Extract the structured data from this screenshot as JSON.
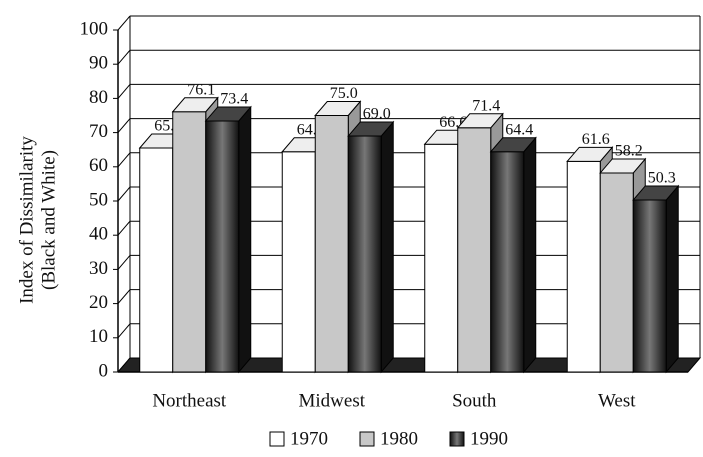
{
  "chart_data": {
    "type": "bar3d",
    "ylabel": [
      "Index of Dissimilarity",
      "(Black and White)"
    ],
    "categories": [
      "Northeast",
      "Midwest",
      "South",
      "West"
    ],
    "series": [
      {
        "name": "1970",
        "color": "#ffffff",
        "values": [
          65.5,
          64.4,
          66.6,
          61.6
        ],
        "value_labels": [
          "65.5",
          "64.4",
          "66.6",
          "61.6"
        ]
      },
      {
        "name": "1980",
        "color": "#c8c8c8",
        "values": [
          76.1,
          75.0,
          71.4,
          58.2
        ],
        "value_labels": [
          "76.1",
          "75.0",
          "71.4",
          "58.2"
        ]
      },
      {
        "name": "1990",
        "color": "#2a2a2a",
        "values": [
          73.4,
          69.0,
          64.4,
          50.3
        ],
        "value_labels": [
          "73.4",
          "69.0",
          "64.4",
          "50.3"
        ]
      }
    ],
    "ylim": [
      0,
      100
    ],
    "yticks": [
      0,
      10,
      20,
      30,
      40,
      50,
      60,
      70,
      80,
      90,
      100
    ],
    "grid": true
  }
}
